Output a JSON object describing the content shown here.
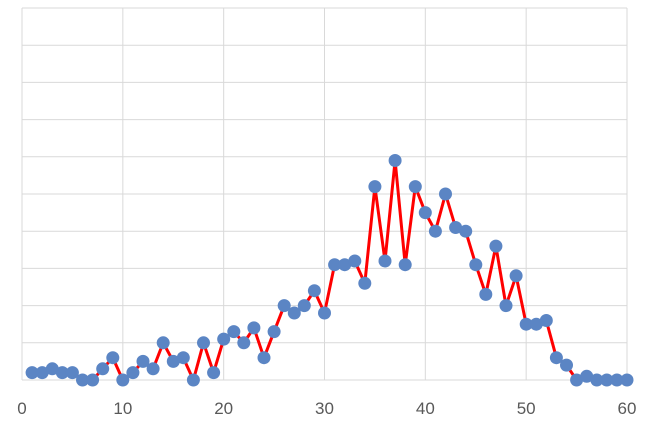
{
  "chart_data": {
    "type": "line",
    "title": "",
    "xlabel": "",
    "ylabel": "",
    "xlim": [
      0,
      60
    ],
    "ylim": [
      0,
      10
    ],
    "x_ticks": [
      0,
      10,
      20,
      30,
      40,
      50,
      60
    ],
    "x_tick_labels": [
      "0",
      "10",
      "20",
      "30",
      "40",
      "50",
      "60"
    ],
    "y_grid_count": 10,
    "grid": true,
    "legend": "none",
    "series": [
      {
        "color": "#ff0000",
        "marker_color": "#5b85c4",
        "x": [
          1,
          2,
          3,
          4,
          5,
          6,
          7,
          8,
          9,
          10,
          11,
          12,
          13,
          14,
          15,
          16,
          17,
          18,
          19,
          20,
          21,
          22,
          23,
          24,
          25,
          26,
          27,
          28,
          29,
          30,
          31,
          32,
          33,
          34,
          35,
          36,
          37,
          38,
          39,
          40,
          41,
          42,
          43,
          44,
          45,
          46,
          47,
          48,
          49,
          50,
          51,
          52,
          53,
          54,
          55,
          56,
          57,
          58,
          59,
          60
        ],
        "y": [
          0.2,
          0.2,
          0.3,
          0.2,
          0.2,
          0.0,
          0.0,
          0.3,
          0.6,
          0.0,
          0.2,
          0.5,
          0.3,
          1.0,
          0.5,
          0.6,
          0.0,
          1.0,
          0.2,
          1.1,
          1.3,
          1.0,
          1.4,
          0.6,
          1.3,
          2.0,
          1.8,
          2.0,
          2.4,
          1.8,
          3.1,
          3.1,
          3.2,
          2.6,
          5.2,
          3.2,
          5.9,
          3.1,
          5.2,
          4.5,
          4.0,
          5.0,
          4.1,
          4.0,
          3.1,
          2.3,
          3.6,
          2.0,
          2.8,
          1.5,
          1.5,
          1.6,
          0.6,
          0.4,
          0.0,
          0.1,
          0.0,
          0.0,
          0.0,
          0.0
        ]
      }
    ]
  }
}
